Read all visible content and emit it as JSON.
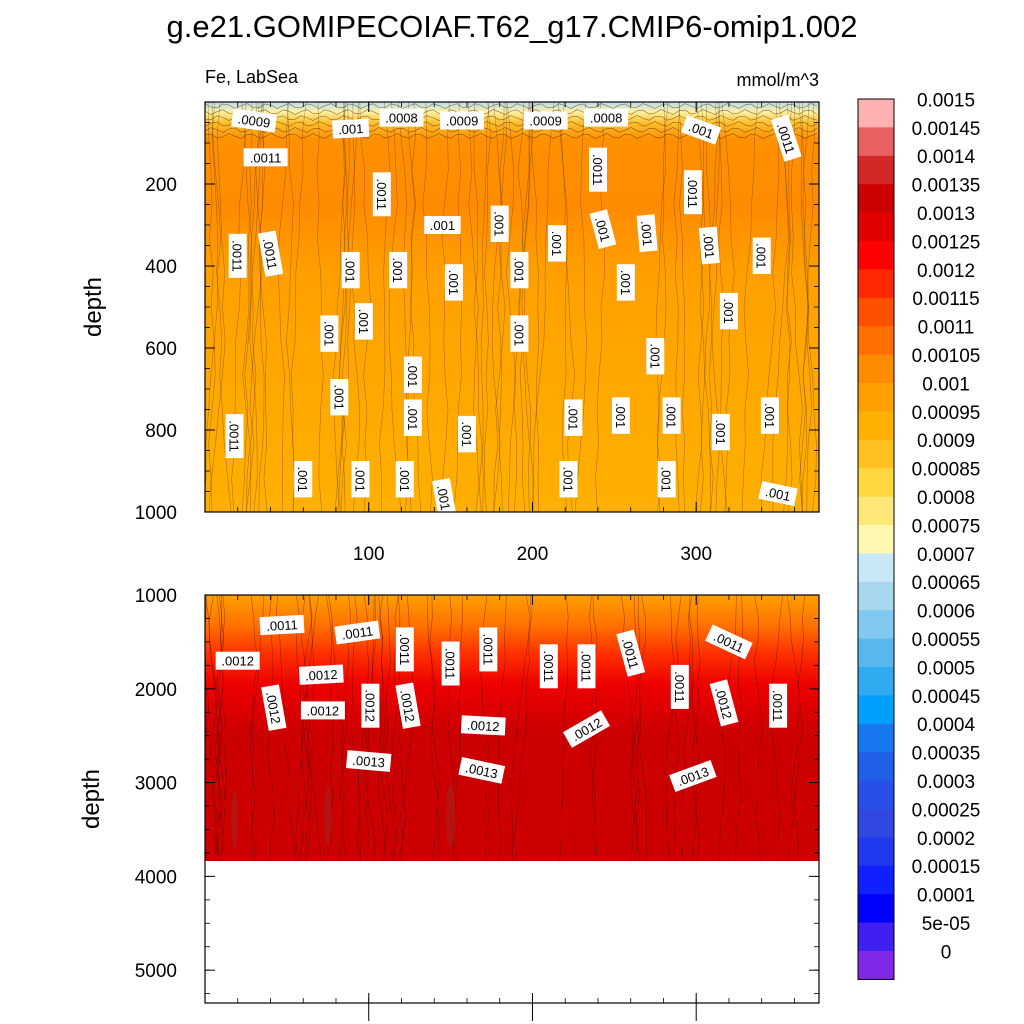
{
  "chart_data": [
    {
      "type": "heatmap",
      "title": "g.e21.GOMIPECOIAF.T62_g17.CMIP6-omip1.002",
      "left_string": "Fe, LabSea",
      "right_string": "mmol/m^3",
      "xlabel": "",
      "ylabel": "depth",
      "xlim": [
        0,
        375
      ],
      "ylim": [
        1000,
        0
      ],
      "xticks": [
        "100",
        "200",
        "300"
      ],
      "xtick_values": [
        100,
        200,
        300
      ],
      "yticks": [
        "200",
        "400",
        "600",
        "800",
        "1000"
      ],
      "ytick_values": [
        200,
        400,
        600,
        800,
        1000
      ],
      "description_values": {
        "surface_layer_0_50m": [
          0.0007,
          0.00085
        ],
        "upper_100_300m": [
          0.00105,
          0.0011
        ],
        "mid_300_1000m": [
          0.00095,
          0.00105
        ]
      },
      "contour_labels": [
        {
          "text": ".0009",
          "x": 30,
          "depth": 45,
          "rotation": 8
        },
        {
          "text": ".001",
          "x": 89,
          "depth": 65,
          "rotation": -3
        },
        {
          "text": ".0008",
          "x": 120,
          "depth": 38,
          "rotation": 0
        },
        {
          "text": ".0009",
          "x": 157,
          "depth": 45,
          "rotation": 0
        },
        {
          "text": ".0009",
          "x": 208,
          "depth": 45,
          "rotation": 0
        },
        {
          "text": ".0008",
          "x": 245,
          "depth": 38,
          "rotation": 0
        },
        {
          "text": ".001",
          "x": 303,
          "depth": 68,
          "rotation": 20
        },
        {
          "text": ".0011",
          "x": 355,
          "depth": 88,
          "rotation": 72
        },
        {
          "text": ".0011",
          "x": 37,
          "depth": 135,
          "rotation": 0
        },
        {
          "text": ".0011",
          "x": 240,
          "depth": 165,
          "rotation": 90
        },
        {
          "text": ".0011",
          "x": 108,
          "depth": 225,
          "rotation": 90
        },
        {
          "text": ".0011",
          "x": 298,
          "depth": 220,
          "rotation": 90
        },
        {
          "text": ".001",
          "x": 145,
          "depth": 300,
          "rotation": 0
        },
        {
          "text": ".001",
          "x": 180,
          "depth": 297,
          "rotation": 90
        },
        {
          "text": ".001",
          "x": 243,
          "depth": 310,
          "rotation": 75
        },
        {
          "text": ".001",
          "x": 270,
          "depth": 320,
          "rotation": 85
        },
        {
          "text": ".001",
          "x": 215,
          "depth": 345,
          "rotation": 90
        },
        {
          "text": ".0011",
          "x": 20,
          "depth": 375,
          "rotation": 90
        },
        {
          "text": ".0011",
          "x": 40,
          "depth": 370,
          "rotation": 80
        },
        {
          "text": ".001",
          "x": 308,
          "depth": 350,
          "rotation": 85
        },
        {
          "text": ".001",
          "x": 340,
          "depth": 375,
          "rotation": 90
        },
        {
          "text": ".001",
          "x": 89,
          "depth": 410,
          "rotation": 90
        },
        {
          "text": ".001",
          "x": 118,
          "depth": 410,
          "rotation": 90
        },
        {
          "text": ".001",
          "x": 192,
          "depth": 410,
          "rotation": 90
        },
        {
          "text": ".001",
          "x": 152,
          "depth": 440,
          "rotation": 90
        },
        {
          "text": ".001",
          "x": 257,
          "depth": 440,
          "rotation": 90
        },
        {
          "text": ".001",
          "x": 320,
          "depth": 510,
          "rotation": 90
        },
        {
          "text": ".001",
          "x": 97,
          "depth": 535,
          "rotation": 90
        },
        {
          "text": ".001",
          "x": 76,
          "depth": 565,
          "rotation": 90
        },
        {
          "text": ".001",
          "x": 192,
          "depth": 565,
          "rotation": 90
        },
        {
          "text": ".001",
          "x": 275,
          "depth": 620,
          "rotation": 90
        },
        {
          "text": ".001",
          "x": 127,
          "depth": 665,
          "rotation": 90
        },
        {
          "text": ".001",
          "x": 82,
          "depth": 720,
          "rotation": 90
        },
        {
          "text": ".001",
          "x": 127,
          "depth": 770,
          "rotation": 90
        },
        {
          "text": ".001",
          "x": 225,
          "depth": 770,
          "rotation": 90
        },
        {
          "text": ".001",
          "x": 254,
          "depth": 765,
          "rotation": 90
        },
        {
          "text": ".001",
          "x": 285,
          "depth": 765,
          "rotation": 90
        },
        {
          "text": ".001",
          "x": 345,
          "depth": 765,
          "rotation": 90
        },
        {
          "text": ".0011",
          "x": 18,
          "depth": 815,
          "rotation": 90
        },
        {
          "text": ".001",
          "x": 160,
          "depth": 810,
          "rotation": 90
        },
        {
          "text": ".001",
          "x": 315,
          "depth": 805,
          "rotation": 90
        },
        {
          "text": ".001",
          "x": 60,
          "depth": 920,
          "rotation": 90
        },
        {
          "text": ".001",
          "x": 95,
          "depth": 920,
          "rotation": 90
        },
        {
          "text": ".001",
          "x": 122,
          "depth": 920,
          "rotation": 90
        },
        {
          "text": ".001",
          "x": 222,
          "depth": 920,
          "rotation": 90
        },
        {
          "text": ".001",
          "x": 282,
          "depth": 920,
          "rotation": 90
        },
        {
          "text": ".001",
          "x": 146,
          "depth": 965,
          "rotation": 80
        },
        {
          "text": ".001",
          "x": 350,
          "depth": 955,
          "rotation": 12
        }
      ]
    },
    {
      "type": "heatmap",
      "xlabel": "",
      "ylabel": "depth",
      "xlim": [
        0,
        375
      ],
      "ylim": [
        5350,
        1000
      ],
      "yticks": [
        "1000",
        "2000",
        "3000",
        "4000",
        "5000"
      ],
      "ytick_values": [
        1000,
        2000,
        3000,
        4000,
        5000
      ],
      "data_bottom_depth": 3850,
      "description_values": {
        "upper_1000_2000m": [
          0.0011,
          0.00115
        ],
        "deep_2500_3850m": [
          0.0013,
          0.00135
        ]
      },
      "contour_labels": [
        {
          "text": ".0011",
          "x": 47,
          "depth": 1320,
          "rotation": -3
        },
        {
          "text": ".0011",
          "x": 93,
          "depth": 1400,
          "rotation": -8
        },
        {
          "text": ".0011",
          "x": 122,
          "depth": 1580,
          "rotation": 90
        },
        {
          "text": ".0011",
          "x": 173,
          "depth": 1580,
          "rotation": 90
        },
        {
          "text": ".0011",
          "x": 150,
          "depth": 1730,
          "rotation": 90
        },
        {
          "text": ".0011",
          "x": 210,
          "depth": 1760,
          "rotation": 90
        },
        {
          "text": ".0011",
          "x": 233,
          "depth": 1760,
          "rotation": 90
        },
        {
          "text": ".0011",
          "x": 260,
          "depth": 1620,
          "rotation": 75
        },
        {
          "text": ".0011",
          "x": 320,
          "depth": 1500,
          "rotation": 25
        },
        {
          "text": ".0011",
          "x": 290,
          "depth": 1980,
          "rotation": 90
        },
        {
          "text": ".0011",
          "x": 350,
          "depth": 2180,
          "rotation": 90
        },
        {
          "text": ".0012",
          "x": 20,
          "depth": 1700,
          "rotation": 0
        },
        {
          "text": ".0012",
          "x": 71,
          "depth": 1850,
          "rotation": -3
        },
        {
          "text": ".0012",
          "x": 42,
          "depth": 2200,
          "rotation": 80
        },
        {
          "text": ".0012",
          "x": 72,
          "depth": 2230,
          "rotation": 0
        },
        {
          "text": ".0012",
          "x": 101,
          "depth": 2180,
          "rotation": 90
        },
        {
          "text": ".0012",
          "x": 124,
          "depth": 2180,
          "rotation": 80
        },
        {
          "text": ".0012",
          "x": 170,
          "depth": 2390,
          "rotation": 3
        },
        {
          "text": ".0012",
          "x": 233,
          "depth": 2430,
          "rotation": -30
        },
        {
          "text": ".0012",
          "x": 317,
          "depth": 2150,
          "rotation": 75
        },
        {
          "text": ".0013",
          "x": 100,
          "depth": 2770,
          "rotation": 5
        },
        {
          "text": ".0013",
          "x": 169,
          "depth": 2870,
          "rotation": 12
        },
        {
          "text": ".0013",
          "x": 298,
          "depth": 2930,
          "rotation": -20
        }
      ]
    },
    {
      "type": "colorbar",
      "labels": [
        "0.0015",
        "0.00145",
        "0.0014",
        "0.00135",
        "0.0013",
        "0.00125",
        "0.0012",
        "0.00115",
        "0.0011",
        "0.00105",
        "0.001",
        "0.00095",
        "0.0009",
        "0.00085",
        "0.0008",
        "0.00075",
        "0.0007",
        "0.00065",
        "0.0006",
        "0.00055",
        "0.0005",
        "0.00045",
        "0.0004",
        "0.00035",
        "0.0003",
        "0.00025",
        "0.0002",
        "0.00015",
        "0.0001",
        "5e-05",
        "0"
      ],
      "colors": [
        "#ffb0b0",
        "#e86060",
        "#d42828",
        "#cc0000",
        "#e00000",
        "#ff0000",
        "#ff2800",
        "#ff5000",
        "#ff6e00",
        "#ff8c00",
        "#ffa000",
        "#ffb000",
        "#ffc020",
        "#ffd840",
        "#ffe878",
        "#fff8b0",
        "#c8e8f8",
        "#a8d8f0",
        "#80c8f0",
        "#58b8ee",
        "#30aaf0",
        "#00a0ff",
        "#1878f0",
        "#2060e8",
        "#2850e8",
        "#3048e0",
        "#2038f0",
        "#1020ff",
        "#0000ff",
        "#4020f0",
        "#8028e8"
      ]
    }
  ]
}
